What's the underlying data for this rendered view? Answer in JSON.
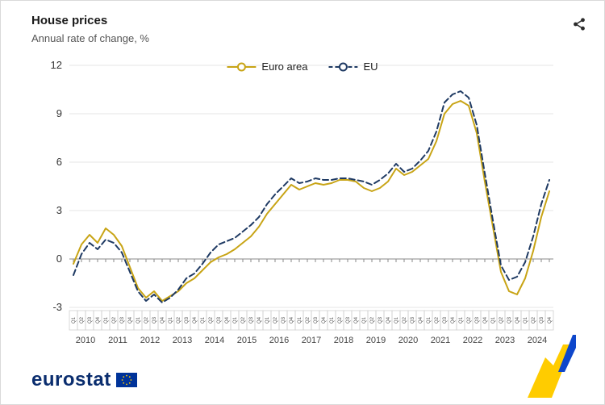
{
  "header": {
    "title": "House prices",
    "subtitle": "Annual rate of change, %"
  },
  "icons": {
    "share": "share-nodes-icon",
    "euro_area_marker": "circle-line-marker",
    "eu_marker": "circle-dashed-line-marker",
    "eu_flag": "eu-flag-icon"
  },
  "footer": {
    "logo_text": "eurostat"
  },
  "colors": {
    "euro_area": "#C8A415",
    "eu": "#1F3A63",
    "grid": "#e4e4e4",
    "axis": "#8a8a8a",
    "flag_blue": "#003399",
    "star_yellow": "#FFCC00",
    "ribbon_blue": "#0E47CB",
    "ribbon_yellow": "#FFCC00",
    "logo_blue": "#0A2D6E"
  },
  "chart_data": {
    "type": "line",
    "title": "House prices",
    "subtitle": "Annual rate of change, %",
    "grid": true,
    "legend_position": "top-center",
    "ylim": [
      -3,
      12
    ],
    "yticks": [
      -3,
      0,
      3,
      6,
      9,
      12
    ],
    "quarter_labels": [
      "Q1",
      "Q2",
      "Q3",
      "Q4"
    ],
    "years": [
      "2010",
      "2011",
      "2012",
      "2013",
      "2014",
      "2015",
      "2016",
      "2017",
      "2018",
      "2019",
      "2020",
      "2021",
      "2022",
      "2023",
      "2024"
    ],
    "series": [
      {
        "name": "Euro area",
        "color": "#C8A415",
        "dash": "solid",
        "values": [
          -0.3,
          0.9,
          1.5,
          1.0,
          1.9,
          1.5,
          0.8,
          -0.5,
          -1.8,
          -2.4,
          -2.0,
          -2.6,
          -2.3,
          -2.0,
          -1.5,
          -1.2,
          -0.7,
          -0.2,
          0.1,
          0.3,
          0.6,
          1.0,
          1.4,
          2.0,
          2.8,
          3.4,
          4.0,
          4.6,
          4.3,
          4.5,
          4.7,
          4.6,
          4.7,
          4.9,
          4.9,
          4.8,
          4.4,
          4.2,
          4.4,
          4.8,
          5.6,
          5.2,
          5.4,
          5.8,
          6.2,
          7.3,
          9.0,
          9.6,
          9.8,
          9.5,
          7.8,
          4.8,
          2.0,
          -0.8,
          -2.0,
          -2.2,
          -1.2,
          0.5,
          2.6,
          4.2
        ]
      },
      {
        "name": "EU",
        "color": "#1F3A63",
        "dash": "dashed",
        "values": [
          -1.0,
          0.3,
          1.0,
          0.6,
          1.2,
          1.0,
          0.4,
          -0.8,
          -2.0,
          -2.6,
          -2.2,
          -2.7,
          -2.4,
          -1.9,
          -1.2,
          -0.9,
          -0.3,
          0.4,
          0.9,
          1.1,
          1.3,
          1.7,
          2.1,
          2.6,
          3.4,
          4.0,
          4.5,
          5.0,
          4.7,
          4.8,
          5.0,
          4.9,
          4.9,
          5.0,
          5.0,
          4.9,
          4.8,
          4.6,
          4.9,
          5.3,
          5.9,
          5.4,
          5.6,
          6.1,
          6.7,
          7.9,
          9.7,
          10.2,
          10.4,
          10.0,
          8.3,
          5.3,
          2.4,
          -0.4,
          -1.3,
          -1.1,
          -0.2,
          1.4,
          3.4,
          4.9
        ]
      }
    ]
  }
}
